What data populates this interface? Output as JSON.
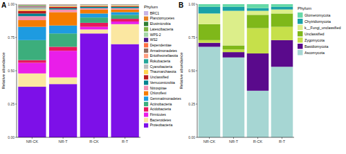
{
  "chart_data": [
    {
      "type": "bar",
      "stacked": true,
      "title": "A",
      "y_label": "Relative abundance",
      "legend_title": "Phylum",
      "legend": "right",
      "categories": [
        "NR-CK",
        "NR-T",
        "R-CK",
        "R-T"
      ],
      "ylim": [
        0,
        1
      ],
      "yticks": [
        {
          "value": 0,
          "label": "0.00"
        },
        {
          "value": 0.25,
          "label": "0.25"
        },
        {
          "value": 0.5,
          "label": "0.50"
        },
        {
          "value": 0.75,
          "label": "0.75"
        },
        {
          "value": 1,
          "label": "1.00"
        }
      ],
      "series": [
        {
          "name": "BRC1",
          "color": "#c8b4e6",
          "values": [
            0.003,
            0.001,
            0.0005,
            0.0005
          ]
        },
        {
          "name": "Planctomycetes",
          "color": "#e67e22",
          "values": [
            0.003,
            0.001,
            0.0005,
            0.0005
          ]
        },
        {
          "name": "Elusimicrobia",
          "color": "#2e7d32",
          "values": [
            0.003,
            0.001,
            0.0005,
            0.0005
          ]
        },
        {
          "name": "Latescibacteria",
          "color": "#7cb342",
          "values": [
            0.003,
            0.001,
            0.0005,
            0.0005
          ]
        },
        {
          "name": "WPS-2",
          "color": "#a5d6a7",
          "values": [
            0.003,
            0.001,
            0.0005,
            0.0005
          ]
        },
        {
          "name": "WS2",
          "color": "#4a148c",
          "values": [
            0.003,
            0.001,
            0.0005,
            0.0005
          ]
        },
        {
          "name": "Dependentiae",
          "color": "#ff7043",
          "values": [
            0.003,
            0.001,
            0.0005,
            0.0005
          ]
        },
        {
          "name": "Armatimonadetes",
          "color": "#8d6e63",
          "values": [
            0.003,
            0.001,
            0.0005,
            0.0005
          ]
        },
        {
          "name": "Entotheonellaeota",
          "color": "#ff9e80",
          "values": [
            0.003,
            0.001,
            0.0005,
            0.0005
          ]
        },
        {
          "name": "Rokubacteria",
          "color": "#26a69a",
          "values": [
            0.003,
            0.001,
            0.0005,
            0.0005
          ]
        },
        {
          "name": "Cyanobacteria",
          "color": "#bdbdbd",
          "values": [
            0.01,
            0.005,
            0.005,
            0.005
          ]
        },
        {
          "name": "Thaumarchaeota",
          "color": "#ffd54f",
          "values": [
            0.01,
            0.005,
            0.005,
            0.005
          ]
        },
        {
          "name": "Unclassified",
          "color": "#b71c1c",
          "values": [
            0.02,
            0.01,
            0.005,
            0.005
          ]
        },
        {
          "name": "Verrucomicrobia",
          "color": "#00838f",
          "values": [
            0.02,
            0.01,
            0.01,
            0.01
          ]
        },
        {
          "name": "Nitrospirae",
          "color": "#f48fb1",
          "values": [
            0.03,
            0.02,
            0.01,
            0.01
          ]
        },
        {
          "name": "Chloroflexi",
          "color": "#f57c00",
          "values": [
            0.05,
            0.1,
            0.03,
            0.02
          ]
        },
        {
          "name": "Gemmatimonadetes",
          "color": "#1e9be0",
          "values": [
            0.1,
            0.06,
            0.03,
            0.02
          ]
        },
        {
          "name": "Actinobacteria",
          "color": "#3cae7c",
          "values": [
            0.15,
            0.1,
            0.04,
            0.03
          ]
        },
        {
          "name": "Acidobacteria",
          "color": "#e8175d",
          "values": [
            0.02,
            0.03,
            0.03,
            0.02
          ]
        },
        {
          "name": "Firmicutes",
          "color": "#e91ee9",
          "values": [
            0.08,
            0.2,
            0.02,
            0.02
          ]
        },
        {
          "name": "Bacteroidetes",
          "color": "#fbe7a1",
          "values": [
            0.1,
            0.05,
            0.03,
            0.15
          ]
        },
        {
          "name": "Proteobacteria",
          "color": "#7d10e8",
          "values": [
            0.38,
            0.4,
            0.78,
            0.7
          ]
        }
      ]
    },
    {
      "type": "bar",
      "stacked": true,
      "title": "B",
      "y_label": "Relative abundance",
      "legend_title": "Phylum",
      "legend": "right",
      "categories": [
        "NR-CK",
        "NR-T",
        "R-CK",
        "R-T"
      ],
      "ylim": [
        0,
        1
      ],
      "yticks": [
        {
          "value": 0,
          "label": "0.00"
        },
        {
          "value": 0.25,
          "label": "0.25"
        },
        {
          "value": 0.5,
          "label": "0.50"
        },
        {
          "value": 0.75,
          "label": "0.75"
        },
        {
          "value": 1,
          "label": "1.00"
        }
      ],
      "series": [
        {
          "name": "Glomeromycota",
          "color": "#66d9a8",
          "values": [
            0.02,
            0.02,
            0.03,
            0.02
          ]
        },
        {
          "name": "Chytridiomycota",
          "color": "#1aa1a8",
          "values": [
            0.05,
            0.03,
            0.02,
            0.02
          ]
        },
        {
          "name": "k__Fungi_unclassified",
          "color": "#dcee8a",
          "values": [
            0.08,
            0.26,
            0.03,
            0.03
          ]
        },
        {
          "name": "Unclassified",
          "color": "#7fb81a",
          "values": [
            0.12,
            0.03,
            0.1,
            0.1
          ]
        },
        {
          "name": "Zygomycota",
          "color": "#c6e04a",
          "values": [
            0.02,
            0.02,
            0.19,
            0.1
          ]
        },
        {
          "name": "Basidiomycota",
          "color": "#5a0a8c",
          "values": [
            0.03,
            0.04,
            0.28,
            0.2
          ]
        },
        {
          "name": "Ascomycota",
          "color": "#a6d6d3",
          "values": [
            0.68,
            0.6,
            0.35,
            0.53
          ]
        }
      ]
    }
  ]
}
